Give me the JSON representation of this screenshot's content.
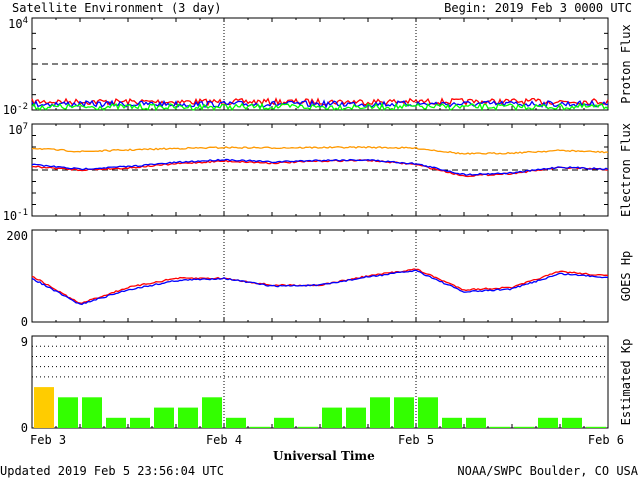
{
  "header": {
    "title": "Satellite Environment (3 day)",
    "begin_label": "Begin:",
    "begin_value": "2019 Feb 3 0000 UTC"
  },
  "footer": {
    "updated": "Updated 2019 Feb  5 23:56:04 UTC",
    "credit": "NOAA/SWPC Boulder, CO USA",
    "xaxis_title": "Universal Time"
  },
  "x_ticks": [
    "Feb 3",
    "Feb 4",
    "Feb 5",
    "Feb 6"
  ],
  "colors": {
    "red": "#ff0000",
    "blue": "#0000ff",
    "green": "#00ff00",
    "orange": "#ff9900",
    "kp_quiet": "#33ff00",
    "kp_active": "#ffcc00"
  },
  "chart_data": [
    {
      "type": "line",
      "panel": "proton",
      "ylabel": "Proton Flux",
      "scale": "log",
      "ylim": [
        0.01,
        10000
      ],
      "ytick_labels": [
        "10^4",
        "10^-2"
      ],
      "threshold": 10,
      "x": [
        "Feb 3",
        "Feb 4",
        "Feb 5",
        "Feb 6"
      ],
      "series": [
        {
          "color": "red",
          "values": [
            0.035,
            0.034,
            0.035,
            0.036
          ]
        },
        {
          "color": "blue",
          "values": [
            0.025,
            0.024,
            0.025,
            0.025
          ]
        },
        {
          "color": "green",
          "values": [
            0.016,
            0.016,
            0.016,
            0.016
          ]
        }
      ]
    },
    {
      "type": "line",
      "panel": "electron",
      "ylabel": "Electron Flux",
      "scale": "log",
      "ylim": [
        0.1,
        10000000
      ],
      "ytick_labels": [
        "10^7",
        "10^-1"
      ],
      "threshold": 1000,
      "x": [
        "Feb 3",
        "Feb 3 06",
        "Feb 3 12",
        "Feb 3 18",
        "Feb 4",
        "Feb 4 06",
        "Feb 4 12",
        "Feb 4 18",
        "Feb 5",
        "Feb 5 06",
        "Feb 5 12",
        "Feb 5 18",
        "Feb 6"
      ],
      "series": [
        {
          "color": "orange",
          "values": [
            80000,
            40000,
            55000,
            75000,
            90000,
            85000,
            90000,
            95000,
            80000,
            25000,
            30000,
            50000,
            35000
          ]
        },
        {
          "color": "red",
          "values": [
            2000,
            1000,
            1500,
            3500,
            6000,
            4000,
            6000,
            7000,
            3000,
            300,
            500,
            1600,
            1100
          ]
        },
        {
          "color": "blue",
          "values": [
            3000,
            1200,
            2000,
            4500,
            8000,
            5000,
            7000,
            7500,
            3500,
            400,
            550,
            1800,
            1200
          ]
        }
      ]
    },
    {
      "type": "line",
      "panel": "goes_hp",
      "ylabel": "GOES Hp",
      "scale": "linear",
      "ylim": [
        0,
        200
      ],
      "ytick_labels": [
        "200",
        "0"
      ],
      "x": [
        "Feb 3",
        "Feb 3 06",
        "Feb 3 12",
        "Feb 3 18",
        "Feb 4",
        "Feb 4 06",
        "Feb 4 12",
        "Feb 4 18",
        "Feb 5",
        "Feb 5 06",
        "Feb 5 12",
        "Feb 5 18",
        "Feb 6"
      ],
      "series": [
        {
          "color": "red",
          "values": [
            100,
            40,
            75,
            95,
            95,
            80,
            80,
            100,
            115,
            70,
            75,
            110,
            100
          ]
        },
        {
          "color": "blue",
          "values": [
            95,
            38,
            70,
            90,
            95,
            78,
            80,
            98,
            112,
            65,
            72,
            105,
            97
          ]
        }
      ]
    },
    {
      "type": "bar",
      "panel": "kp",
      "ylabel": "Estimated Kp",
      "ylim": [
        0,
        9
      ],
      "ytick_labels": [
        "9",
        "0"
      ],
      "values": [
        4,
        3,
        3,
        1,
        1,
        2,
        2,
        3,
        1,
        0,
        1,
        0,
        2,
        2,
        3,
        3,
        3,
        1,
        1,
        0,
        0,
        1,
        1,
        0
      ],
      "bar_colors": [
        "active",
        "quiet",
        "quiet",
        "quiet",
        "quiet",
        "quiet",
        "quiet",
        "quiet",
        "quiet",
        "quiet",
        "quiet",
        "quiet",
        "quiet",
        "quiet",
        "quiet",
        "quiet",
        "quiet",
        "quiet",
        "quiet",
        "quiet",
        "quiet",
        "quiet",
        "quiet",
        "quiet"
      ]
    }
  ]
}
